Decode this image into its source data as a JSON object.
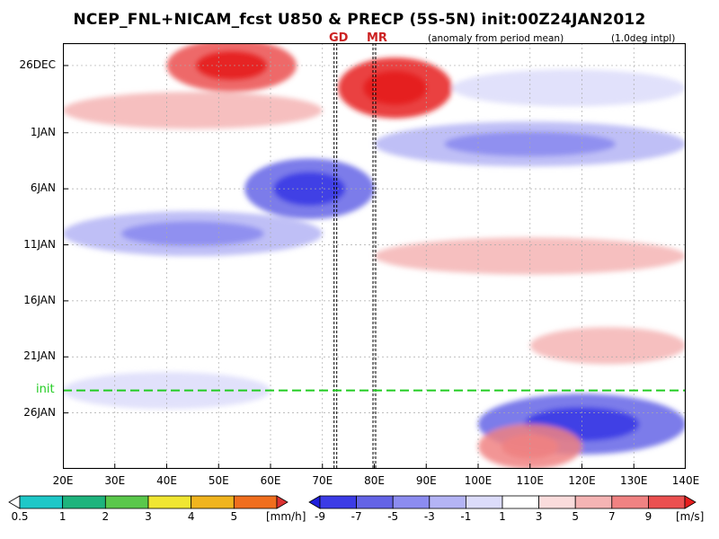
{
  "title": "NCEP_FNL+NICAM_fcst U850 & PRECP (5S-5N) init:00Z24JAN2012",
  "subtitle_left": "(anomaly from period mean)",
  "subtitle_right": "(1.0deg intpl)",
  "markers": [
    {
      "label": "GD",
      "lon": 72.5
    },
    {
      "label": "MR",
      "lon": 80
    }
  ],
  "init_label": "init",
  "colors": {
    "init_line": "#22cc22",
    "marker_label": "#cc2222"
  },
  "chart_data": {
    "type": "heatmap",
    "x_axis": {
      "range": [
        20,
        140
      ],
      "ticks": [
        20,
        30,
        40,
        50,
        60,
        70,
        80,
        90,
        100,
        110,
        120,
        130,
        140
      ],
      "tick_labels": [
        "20E",
        "30E",
        "40E",
        "50E",
        "60E",
        "70E",
        "80E",
        "90E",
        "100E",
        "110E",
        "120E",
        "130E",
        "140E"
      ]
    },
    "y_axis": {
      "range": [
        "2011-12-24",
        "2012-01-31"
      ],
      "inverted": true,
      "tick_dates": [
        "2011-12-26",
        "2012-01-01",
        "2012-01-06",
        "2012-01-11",
        "2012-01-16",
        "2012-01-21",
        "2012-01-26"
      ],
      "tick_labels": [
        "26DEC",
        "1JAN",
        "6JAN",
        "11JAN",
        "16JAN",
        "21JAN",
        "26JAN"
      ]
    },
    "init_date": "2012-01-24",
    "precip_colorbar": {
      "unit": "[mm/h]",
      "levels": [
        0.5,
        1,
        2,
        3,
        4,
        5
      ],
      "tick_labels": [
        "0.5",
        "1",
        "2",
        "3",
        "4",
        "5"
      ],
      "colors": [
        "#ffffff",
        "#1ec8c8",
        "#1eb47d",
        "#5ac84b",
        "#f0e632",
        "#f0b41e",
        "#f06e1e",
        "#dc3232"
      ]
    },
    "u850_colorbar": {
      "unit": "[m/s]",
      "levels": [
        -9,
        -7,
        -5,
        -3,
        -1,
        1,
        3,
        5,
        7,
        9
      ],
      "tick_labels": [
        "-9",
        "-7",
        "-5",
        "-3",
        "-1",
        "1",
        "3",
        "5",
        "7",
        "9"
      ],
      "colors": [
        "#1e1edc",
        "#3c3ce6",
        "#6464e6",
        "#8c8cf0",
        "#b4b4f5",
        "#dcdcfa",
        "#ffffff",
        "#fadcdc",
        "#f5b4b4",
        "#f08282",
        "#eb5050",
        "#e61e1e"
      ]
    },
    "u850_anomaly_features": [
      {
        "lon": [
          40,
          65
        ],
        "date": "2011-12-26",
        "value": 7
      },
      {
        "lon": [
          73,
          95
        ],
        "date": "2011-12-28",
        "value": 9
      },
      {
        "lon": [
          20,
          70
        ],
        "date": "2011-12-30",
        "value": 3
      },
      {
        "lon": [
          95,
          140
        ],
        "date": "2011-12-28",
        "value": -3
      },
      {
        "lon": [
          80,
          140
        ],
        "date": "2012-01-02",
        "value": -5
      },
      {
        "lon": [
          55,
          80
        ],
        "date": "2012-01-06",
        "value": -9
      },
      {
        "lon": [
          20,
          70
        ],
        "date": "2012-01-10",
        "value": -5
      },
      {
        "lon": [
          80,
          140
        ],
        "date": "2012-01-12",
        "value": 3
      },
      {
        "lon": [
          110,
          140
        ],
        "date": "2012-01-20",
        "value": 3
      },
      {
        "lon": [
          20,
          60
        ],
        "date": "2012-01-24",
        "value": -3
      },
      {
        "lon": [
          100,
          140
        ],
        "date": "2012-01-27",
        "value": -9
      },
      {
        "lon": [
          100,
          120
        ],
        "date": "2012-01-29",
        "value": 5
      }
    ]
  }
}
